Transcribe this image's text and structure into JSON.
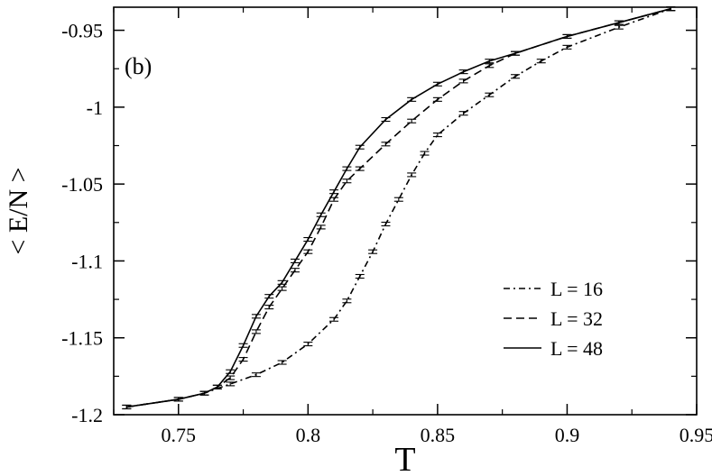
{
  "chart_data": {
    "type": "line",
    "panel_label": "(b)",
    "xlabel": "T",
    "ylabel": "< E/N >",
    "xlim": [
      0.725,
      0.95
    ],
    "ylim": [
      -1.2,
      -0.935
    ],
    "x_ticks": [
      0.75,
      0.8,
      0.85,
      0.9,
      0.95
    ],
    "x_tick_labels": [
      "0.75",
      "0.8",
      "0.85",
      "0.9",
      "0.95"
    ],
    "y_ticks": [
      -1.2,
      -1.15,
      -1.1,
      -1.05,
      -1.0,
      -0.95
    ],
    "y_tick_labels": [
      "-1.2",
      "-1.15",
      "-1.1",
      "-1.05",
      "-1",
      "-0.95"
    ],
    "grid": false,
    "legend_position": "bottom-right",
    "series": [
      {
        "name": "L = 16",
        "style": "dash-dot",
        "color": "#000000",
        "x": [
          0.73,
          0.75,
          0.76,
          0.77,
          0.78,
          0.79,
          0.8,
          0.81,
          0.815,
          0.82,
          0.825,
          0.83,
          0.835,
          0.84,
          0.845,
          0.85,
          0.86,
          0.87,
          0.88,
          0.89,
          0.9,
          0.92,
          0.94
        ],
        "y": [
          -1.195,
          -1.19,
          -1.186,
          -1.18,
          -1.174,
          -1.166,
          -1.154,
          -1.138,
          -1.126,
          -1.11,
          -1.094,
          -1.076,
          -1.06,
          -1.044,
          -1.03,
          -1.018,
          -1.004,
          -0.992,
          -0.98,
          -0.97,
          -0.961,
          -0.948,
          -0.936
        ]
      },
      {
        "name": "L = 32",
        "style": "dashed",
        "color": "#000000",
        "x": [
          0.73,
          0.75,
          0.76,
          0.765,
          0.77,
          0.775,
          0.78,
          0.785,
          0.79,
          0.795,
          0.8,
          0.805,
          0.81,
          0.815,
          0.82,
          0.83,
          0.84,
          0.85,
          0.86,
          0.87,
          0.88,
          0.9,
          0.92,
          0.94
        ],
        "y": [
          -1.195,
          -1.19,
          -1.186,
          -1.182,
          -1.176,
          -1.164,
          -1.146,
          -1.13,
          -1.118,
          -1.106,
          -1.094,
          -1.078,
          -1.06,
          -1.048,
          -1.04,
          -1.024,
          -1.009,
          -0.995,
          -0.983,
          -0.973,
          -0.965,
          -0.954,
          -0.945,
          -0.936
        ]
      },
      {
        "name": "L = 48",
        "style": "solid",
        "color": "#000000",
        "x": [
          0.73,
          0.75,
          0.76,
          0.765,
          0.77,
          0.775,
          0.78,
          0.785,
          0.79,
          0.795,
          0.8,
          0.805,
          0.81,
          0.815,
          0.82,
          0.83,
          0.84,
          0.85,
          0.86,
          0.87,
          0.88,
          0.9,
          0.92,
          0.94
        ],
        "y": [
          -1.195,
          -1.19,
          -1.186,
          -1.182,
          -1.172,
          -1.155,
          -1.136,
          -1.123,
          -1.114,
          -1.1,
          -1.086,
          -1.07,
          -1.055,
          -1.04,
          -1.026,
          -1.008,
          -0.995,
          -0.985,
          -0.977,
          -0.97,
          -0.965,
          -0.954,
          -0.945,
          -0.936
        ]
      }
    ]
  }
}
